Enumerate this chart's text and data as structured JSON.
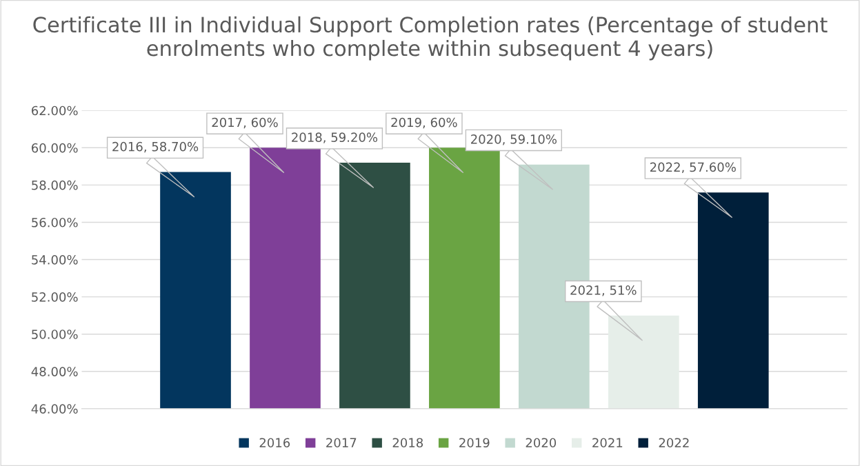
{
  "chart_data": {
    "type": "bar",
    "title": "Certificate III in Individual Support Completion rates (Percentage of student enrolments who complete within subsequent 4 years)",
    "categories": [
      null
    ],
    "series": [
      {
        "name": "2016",
        "color": "#03365e",
        "values": [
          58.7
        ],
        "value_labels": [
          "2016, 58.70%"
        ]
      },
      {
        "name": "2017",
        "color": "#7f3f98",
        "values": [
          60
        ],
        "value_labels": [
          "2017, 60%"
        ]
      },
      {
        "name": "2018",
        "color": "#2e4f44",
        "values": [
          59.2
        ],
        "value_labels": [
          "2018, 59.20%"
        ]
      },
      {
        "name": "2019",
        "color": "#6aa443",
        "values": [
          60
        ],
        "value_labels": [
          "2019, 60%"
        ]
      },
      {
        "name": "2020",
        "color": "#c2d9d0",
        "values": [
          59.1
        ],
        "value_labels": [
          "2020, 59.10%"
        ]
      },
      {
        "name": "2021",
        "color": "#e6eee9",
        "values": [
          51
        ],
        "value_labels": [
          "2021, 51%"
        ]
      },
      {
        "name": "2022",
        "color": "#001f3a",
        "values": [
          57.6
        ],
        "value_labels": [
          "2022, 57.60%"
        ]
      }
    ],
    "ylim": [
      46,
      62
    ],
    "yticks": [
      {
        "value": 46,
        "label": "46.00%"
      },
      {
        "value": 48,
        "label": "48.00%"
      },
      {
        "value": 50,
        "label": "50.00%"
      },
      {
        "value": 52,
        "label": "52.00%"
      },
      {
        "value": 54,
        "label": "54.00%"
      },
      {
        "value": 56,
        "label": "56.00%"
      },
      {
        "value": 58,
        "label": "58.00%"
      },
      {
        "value": 60,
        "label": "60.00%"
      },
      {
        "value": 62,
        "label": "62.00%"
      }
    ],
    "grid": "y",
    "legend": "bottom",
    "tick_labels": "y"
  }
}
